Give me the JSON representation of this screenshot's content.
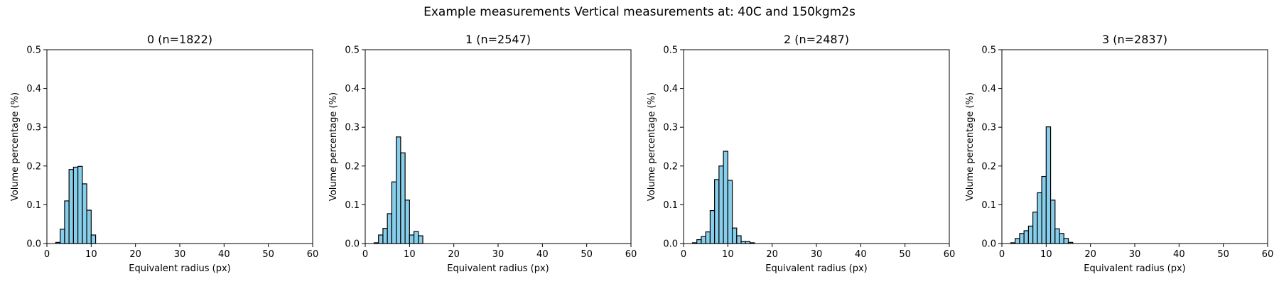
{
  "figure_title": "Example measurements Vertical measurements at: 40C and 150kgm2s",
  "bar_color": "#87ceeb",
  "edge_color": "#000000",
  "chart_data": [
    {
      "type": "bar",
      "title": "0 (n=1822)",
      "xlabel": "Equivalent radius (px)",
      "ylabel": "Volume percentage (%)",
      "xlim": [
        0,
        60
      ],
      "ylim": [
        0,
        0.5
      ],
      "xticks": [
        "0",
        "10",
        "20",
        "30",
        "40",
        "50",
        "60"
      ],
      "yticks": [
        "0.0",
        "0.1",
        "0.2",
        "0.3",
        "0.4",
        "0.5"
      ],
      "bin_width": 1,
      "bins": [
        {
          "x": 2,
          "y": 0.003
        },
        {
          "x": 3,
          "y": 0.037
        },
        {
          "x": 4,
          "y": 0.11
        },
        {
          "x": 5,
          "y": 0.191
        },
        {
          "x": 6,
          "y": 0.197
        },
        {
          "x": 7,
          "y": 0.199
        },
        {
          "x": 8,
          "y": 0.154
        },
        {
          "x": 9,
          "y": 0.086
        },
        {
          "x": 10,
          "y": 0.022
        }
      ]
    },
    {
      "type": "bar",
      "title": "1 (n=2547)",
      "xlabel": "Equivalent radius (px)",
      "ylabel": "Volume percentage (%)",
      "xlim": [
        0,
        60
      ],
      "ylim": [
        0,
        0.5
      ],
      "xticks": [
        "0",
        "10",
        "20",
        "30",
        "40",
        "50",
        "60"
      ],
      "yticks": [
        "0.0",
        "0.1",
        "0.2",
        "0.3",
        "0.4",
        "0.5"
      ],
      "bin_width": 1,
      "bins": [
        {
          "x": 2,
          "y": 0.002
        },
        {
          "x": 3,
          "y": 0.022
        },
        {
          "x": 4,
          "y": 0.039
        },
        {
          "x": 5,
          "y": 0.077
        },
        {
          "x": 6,
          "y": 0.159
        },
        {
          "x": 7,
          "y": 0.275
        },
        {
          "x": 8,
          "y": 0.234
        },
        {
          "x": 9,
          "y": 0.112
        },
        {
          "x": 10,
          "y": 0.022
        },
        {
          "x": 11,
          "y": 0.031
        },
        {
          "x": 12,
          "y": 0.02
        }
      ]
    },
    {
      "type": "bar",
      "title": "2 (n=2487)",
      "xlabel": "Equivalent radius (px)",
      "ylabel": "Volume percentage (%)",
      "xlim": [
        0,
        60
      ],
      "ylim": [
        0,
        0.5
      ],
      "xticks": [
        "0",
        "10",
        "20",
        "30",
        "40",
        "50",
        "60"
      ],
      "yticks": [
        "0.0",
        "0.1",
        "0.2",
        "0.3",
        "0.4",
        "0.5"
      ],
      "bin_width": 1,
      "bins": [
        {
          "x": 2,
          "y": 0.002
        },
        {
          "x": 3,
          "y": 0.01
        },
        {
          "x": 4,
          "y": 0.018
        },
        {
          "x": 5,
          "y": 0.03
        },
        {
          "x": 6,
          "y": 0.085
        },
        {
          "x": 7,
          "y": 0.165
        },
        {
          "x": 8,
          "y": 0.2
        },
        {
          "x": 9,
          "y": 0.238
        },
        {
          "x": 10,
          "y": 0.163
        },
        {
          "x": 11,
          "y": 0.04
        },
        {
          "x": 12,
          "y": 0.02
        },
        {
          "x": 13,
          "y": 0.005
        },
        {
          "x": 14,
          "y": 0.005
        },
        {
          "x": 15,
          "y": 0.002
        }
      ]
    },
    {
      "type": "bar",
      "title": "3 (n=2837)",
      "xlabel": "Equivalent radius (px)",
      "ylabel": "Volume percentage (%)",
      "xlim": [
        0,
        60
      ],
      "ylim": [
        0,
        0.5
      ],
      "xticks": [
        "0",
        "10",
        "20",
        "30",
        "40",
        "50",
        "60"
      ],
      "yticks": [
        "0.0",
        "0.1",
        "0.2",
        "0.3",
        "0.4",
        "0.5"
      ],
      "bin_width": 1,
      "bins": [
        {
          "x": 2,
          "y": 0.002
        },
        {
          "x": 3,
          "y": 0.013
        },
        {
          "x": 4,
          "y": 0.026
        },
        {
          "x": 5,
          "y": 0.033
        },
        {
          "x": 6,
          "y": 0.045
        },
        {
          "x": 7,
          "y": 0.081
        },
        {
          "x": 8,
          "y": 0.131
        },
        {
          "x": 9,
          "y": 0.173
        },
        {
          "x": 10,
          "y": 0.301
        },
        {
          "x": 11,
          "y": 0.112
        },
        {
          "x": 12,
          "y": 0.038
        },
        {
          "x": 13,
          "y": 0.026
        },
        {
          "x": 14,
          "y": 0.013
        },
        {
          "x": 15,
          "y": 0.003
        }
      ]
    }
  ]
}
